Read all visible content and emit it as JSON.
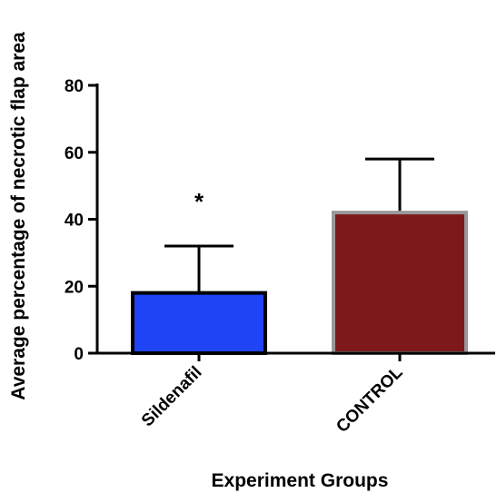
{
  "chart_data": {
    "type": "bar",
    "title": "",
    "xlabel": "Experiment Groups",
    "ylabel": "Average percentage of necrotic flap area",
    "ylim": [
      0,
      80
    ],
    "yticks": [
      0,
      20,
      40,
      60,
      80
    ],
    "categories": [
      "Sildenafil",
      "CONTROL"
    ],
    "values": [
      18,
      42
    ],
    "error_upper": [
      32,
      58
    ],
    "bar_colors": [
      "#1f44f5",
      "#7d1919"
    ],
    "bar_edge_colors": [
      "#000000",
      "#999999"
    ],
    "annotations": [
      {
        "category": "Sildenafil",
        "text": "*"
      }
    ],
    "grid": false,
    "legend": "none"
  }
}
